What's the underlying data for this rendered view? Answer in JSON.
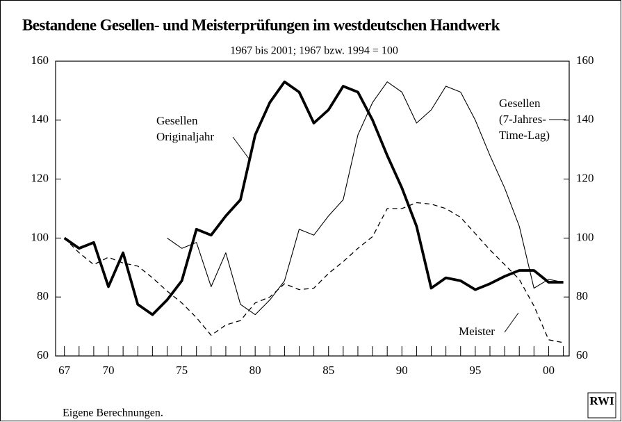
{
  "chart_data": {
    "type": "line",
    "title": "Bestandene Gesellen- und Meisterprüfungen im westdeutschen Handwerk",
    "subtitle": "1967 bis 2001; 1967 bzw. 1994 = 100",
    "x": [
      1967,
      1968,
      1969,
      1970,
      1971,
      1972,
      1973,
      1974,
      1975,
      1976,
      1977,
      1978,
      1979,
      1980,
      1981,
      1982,
      1983,
      1984,
      1985,
      1986,
      1987,
      1988,
      1989,
      1990,
      1991,
      1992,
      1993,
      1994,
      1995,
      1996,
      1997,
      1998,
      1999,
      2000,
      2001
    ],
    "xlim": [
      1966.4,
      2001.4
    ],
    "xticks": [
      {
        "value": 1967,
        "label": "67"
      },
      {
        "value": 1970,
        "label": "70"
      },
      {
        "value": 1975,
        "label": "75"
      },
      {
        "value": 1980,
        "label": "80"
      },
      {
        "value": 1985,
        "label": "85"
      },
      {
        "value": 1990,
        "label": "90"
      },
      {
        "value": 1995,
        "label": "95"
      },
      {
        "value": 2000,
        "label": "00"
      }
    ],
    "ylim": [
      60,
      160
    ],
    "yticks": [
      60,
      80,
      100,
      120,
      140,
      160
    ],
    "y2lim": [
      60,
      160
    ],
    "y2ticks": [
      60,
      80,
      100,
      120,
      140,
      160
    ],
    "series": [
      {
        "color": "#000000",
        "style": "thick",
        "values": [
          100,
          96.5,
          98.5,
          83.5,
          95,
          77.5,
          74,
          79,
          85.5,
          103,
          101,
          107.5,
          113,
          135,
          146,
          153,
          149.5,
          139,
          143.5,
          151.5,
          149.5,
          140,
          128,
          117,
          104,
          83,
          86.5,
          85.5,
          82.5,
          84.5,
          87,
          89,
          89,
          85,
          85
        ]
      },
      {
        "color": "#000000",
        "style": "thin",
        "values": [
          null,
          null,
          null,
          null,
          null,
          null,
          null,
          100,
          96.5,
          98.5,
          83.5,
          95,
          77.5,
          74,
          79,
          85.5,
          103,
          101,
          107.5,
          113,
          135,
          146,
          153,
          149.5,
          139,
          143.5,
          151.5,
          149.5,
          140,
          128,
          117,
          104,
          83,
          86,
          85
        ]
      },
      {
        "color": "#000000",
        "style": "dashed",
        "values": [
          100,
          95,
          91,
          93.5,
          91.5,
          90.5,
          86.5,
          82,
          78,
          73,
          67,
          70.5,
          72,
          78,
          80,
          84.5,
          82.5,
          83,
          88,
          92,
          96.5,
          100.5,
          110,
          110,
          112,
          111.5,
          110,
          107,
          101.5,
          96,
          91,
          86,
          77,
          65.5,
          64.5
        ]
      }
    ],
    "annotations": [
      {
        "lines": [
          "Gesellen",
          "Originaljahr"
        ]
      },
      {
        "lines": [
          "Gesellen",
          "(7-Jahres-",
          "Time-Lag)"
        ]
      },
      {
        "lines": [
          "Meister"
        ]
      }
    ],
    "footnote": "Eigene Berechnungen.",
    "logo": "RWI"
  }
}
